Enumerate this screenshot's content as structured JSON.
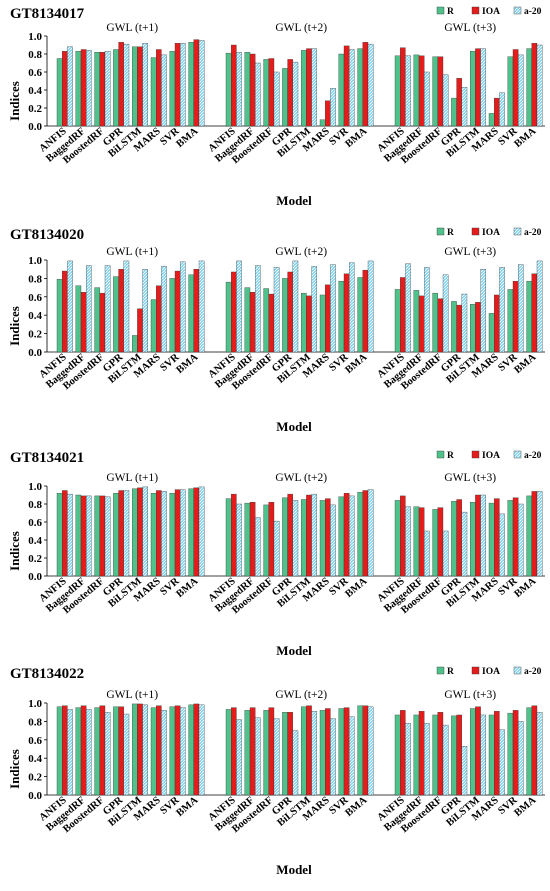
{
  "figure": {
    "models": [
      "ANFIS",
      "BaggedRF",
      "BoostedRF",
      "GPR",
      "BiLSTM",
      "MARS",
      "SVR",
      "BMA"
    ],
    "xlabel": "Model",
    "ylabel": "Indices",
    "legend": [
      "R",
      "IOA",
      "a-20"
    ],
    "colors": {
      "R": "#4ec28a",
      "IOA": "#e41c1c",
      "a-20": "#7fd3ef"
    }
  },
  "chart_data": [
    {
      "type": "bar",
      "title": "GT8134017",
      "xlabel": "Model",
      "ylabel": "Indices",
      "ylim": [
        0,
        1
      ],
      "yticks": [
        "0.0",
        "0.2",
        "0.4",
        "0.6",
        "0.8",
        "1.0"
      ],
      "legend_position": "top-right",
      "panels": [
        {
          "label": "GWL (t+1)",
          "categories": [
            "ANFIS",
            "BaggedRF",
            "BoostedRF",
            "GPR",
            "BiLSTM",
            "MARS",
            "SVR",
            "BMA"
          ],
          "series": [
            {
              "name": "R",
              "values": [
                0.75,
                0.83,
                0.82,
                0.85,
                0.88,
                0.76,
                0.83,
                0.93
              ]
            },
            {
              "name": "IOA",
              "values": [
                0.83,
                0.85,
                0.82,
                0.93,
                0.88,
                0.85,
                0.92,
                0.96
              ]
            },
            {
              "name": "a-20",
              "values": [
                0.88,
                0.84,
                0.83,
                0.91,
                0.92,
                0.79,
                0.92,
                0.95
              ]
            }
          ]
        },
        {
          "label": "GWL (t+2)",
          "categories": [
            "ANFIS",
            "BaggedRF",
            "BoostedRF",
            "GPR",
            "BiLSTM",
            "MARS",
            "SVR",
            "BMA"
          ],
          "series": [
            {
              "name": "R",
              "values": [
                0.81,
                0.82,
                0.74,
                0.64,
                0.84,
                0.07,
                0.8,
                0.86
              ]
            },
            {
              "name": "IOA",
              "values": [
                0.9,
                0.8,
                0.75,
                0.74,
                0.86,
                0.28,
                0.89,
                0.93
              ]
            },
            {
              "name": "a-20",
              "values": [
                0.82,
                0.7,
                0.6,
                0.71,
                0.86,
                0.42,
                0.85,
                0.91
              ]
            }
          ]
        },
        {
          "label": "GWL (t+3)",
          "categories": [
            "ANFIS",
            "BaggedRF",
            "BoostedRF",
            "GPR",
            "BiLSTM",
            "MARS",
            "SVR",
            "BMA"
          ],
          "series": [
            {
              "name": "R",
              "values": [
                0.78,
                0.79,
                0.77,
                0.31,
                0.83,
                0.14,
                0.77,
                0.86
              ]
            },
            {
              "name": "IOA",
              "values": [
                0.87,
                0.78,
                0.77,
                0.53,
                0.86,
                0.31,
                0.85,
                0.92
              ]
            },
            {
              "name": "a-20",
              "values": [
                0.78,
                0.6,
                0.57,
                0.43,
                0.86,
                0.37,
                0.79,
                0.9
              ]
            }
          ]
        }
      ]
    },
    {
      "type": "bar",
      "title": "GT8134020",
      "xlabel": "Model",
      "ylabel": "Indices",
      "ylim": [
        0,
        1
      ],
      "yticks": [
        "0.0",
        "0.2",
        "0.4",
        "0.6",
        "0.8",
        "1.0"
      ],
      "legend_position": "top-right",
      "panels": [
        {
          "label": "GWL (t+1)",
          "categories": [
            "ANFIS",
            "BaggedRF",
            "BoostedRF",
            "GPR",
            "BiLSTM",
            "MARS",
            "SVR",
            "BMA"
          ],
          "series": [
            {
              "name": "R",
              "values": [
                0.79,
                0.72,
                0.7,
                0.82,
                0.18,
                0.57,
                0.8,
                0.84
              ]
            },
            {
              "name": "IOA",
              "values": [
                0.88,
                0.65,
                0.64,
                0.9,
                0.47,
                0.72,
                0.88,
                0.9
              ]
            },
            {
              "name": "a-20",
              "values": [
                0.99,
                0.94,
                0.94,
                0.99,
                0.9,
                0.93,
                0.98,
                0.99
              ]
            }
          ]
        },
        {
          "label": "GWL (t+2)",
          "categories": [
            "ANFIS",
            "BaggedRF",
            "BoostedRF",
            "GPR",
            "BiLSTM",
            "MARS",
            "SVR",
            "BMA"
          ],
          "series": [
            {
              "name": "R",
              "values": [
                0.76,
                0.7,
                0.69,
                0.8,
                0.64,
                0.62,
                0.77,
                0.81
              ]
            },
            {
              "name": "IOA",
              "values": [
                0.87,
                0.65,
                0.63,
                0.87,
                0.61,
                0.73,
                0.85,
                0.89
              ]
            },
            {
              "name": "a-20",
              "values": [
                0.99,
                0.94,
                0.92,
                0.99,
                0.93,
                0.95,
                0.97,
                0.99
              ]
            }
          ]
        },
        {
          "label": "GWL (t+3)",
          "categories": [
            "ANFIS",
            "BaggedRF",
            "BoostedRF",
            "GPR",
            "BiLSTM",
            "MARS",
            "SVR",
            "BMA"
          ],
          "series": [
            {
              "name": "R",
              "values": [
                0.68,
                0.67,
                0.64,
                0.55,
                0.52,
                0.42,
                0.68,
                0.77
              ]
            },
            {
              "name": "IOA",
              "values": [
                0.81,
                0.61,
                0.58,
                0.51,
                0.54,
                0.62,
                0.77,
                0.85
              ]
            },
            {
              "name": "a-20",
              "values": [
                0.96,
                0.92,
                0.84,
                0.63,
                0.9,
                0.92,
                0.95,
                0.99
              ]
            }
          ]
        }
      ]
    },
    {
      "type": "bar",
      "title": "GT8134021",
      "xlabel": "Model",
      "ylabel": "Indices",
      "ylim": [
        0,
        1
      ],
      "yticks": [
        "0.0",
        "0.2",
        "0.4",
        "0.6",
        "0.8",
        "1.0"
      ],
      "legend_position": "top-right",
      "panels": [
        {
          "label": "GWL (t+1)",
          "categories": [
            "ANFIS",
            "BaggedRF",
            "BoostedRF",
            "GPR",
            "BiLSTM",
            "MARS",
            "SVR",
            "BMA"
          ],
          "series": [
            {
              "name": "R",
              "values": [
                0.92,
                0.9,
                0.89,
                0.92,
                0.97,
                0.92,
                0.92,
                0.97
              ]
            },
            {
              "name": "IOA",
              "values": [
                0.95,
                0.89,
                0.89,
                0.95,
                0.98,
                0.95,
                0.96,
                0.98
              ]
            },
            {
              "name": "a-20",
              "values": [
                0.91,
                0.89,
                0.88,
                0.95,
                0.99,
                0.94,
                0.96,
                0.99
              ]
            }
          ]
        },
        {
          "label": "GWL (t+2)",
          "categories": [
            "ANFIS",
            "BaggedRF",
            "BoostedRF",
            "GPR",
            "BiLSTM",
            "MARS",
            "SVR",
            "BMA"
          ],
          "series": [
            {
              "name": "R",
              "values": [
                0.86,
                0.81,
                0.79,
                0.87,
                0.85,
                0.84,
                0.88,
                0.93
              ]
            },
            {
              "name": "IOA",
              "values": [
                0.91,
                0.82,
                0.82,
                0.91,
                0.9,
                0.86,
                0.92,
                0.95
              ]
            },
            {
              "name": "a-20",
              "values": [
                0.8,
                0.65,
                0.61,
                0.84,
                0.91,
                0.79,
                0.89,
                0.96
              ]
            }
          ]
        },
        {
          "label": "GWL (t+3)",
          "categories": [
            "ANFIS",
            "BaggedRF",
            "BoostedRF",
            "GPR",
            "BiLSTM",
            "MARS",
            "SVR",
            "BMA"
          ],
          "series": [
            {
              "name": "R",
              "values": [
                0.84,
                0.77,
                0.74,
                0.83,
                0.82,
                0.81,
                0.84,
                0.89
              ]
            },
            {
              "name": "IOA",
              "values": [
                0.89,
                0.76,
                0.76,
                0.85,
                0.9,
                0.86,
                0.87,
                0.94
              ]
            },
            {
              "name": "a-20",
              "values": [
                0.77,
                0.5,
                0.5,
                0.71,
                0.9,
                0.69,
                0.8,
                0.94
              ]
            }
          ]
        }
      ]
    },
    {
      "type": "bar",
      "title": "GT8134022",
      "xlabel": "Model",
      "ylabel": "Indices",
      "ylim": [
        0,
        1
      ],
      "yticks": [
        "0.0",
        "0.2",
        "0.4",
        "0.6",
        "0.8",
        "1.0"
      ],
      "legend_position": "top-right",
      "panels": [
        {
          "label": "GWL (t+1)",
          "categories": [
            "ANFIS",
            "BaggedRF",
            "BoostedRF",
            "GPR",
            "BiLSTM",
            "MARS",
            "SVR",
            "BMA"
          ],
          "series": [
            {
              "name": "R",
              "values": [
                0.96,
                0.95,
                0.95,
                0.96,
                0.99,
                0.95,
                0.96,
                0.98
              ]
            },
            {
              "name": "IOA",
              "values": [
                0.97,
                0.97,
                0.97,
                0.96,
                0.99,
                0.97,
                0.97,
                0.99
              ]
            },
            {
              "name": "a-20",
              "values": [
                0.93,
                0.93,
                0.9,
                0.88,
                0.98,
                0.92,
                0.95,
                0.98
              ]
            }
          ]
        },
        {
          "label": "GWL (t+2)",
          "categories": [
            "ANFIS",
            "BaggedRF",
            "BoostedRF",
            "GPR",
            "BiLSTM",
            "MARS",
            "SVR",
            "BMA"
          ],
          "series": [
            {
              "name": "R",
              "values": [
                0.93,
                0.92,
                0.92,
                0.9,
                0.96,
                0.92,
                0.94,
                0.97
              ]
            },
            {
              "name": "IOA",
              "values": [
                0.95,
                0.95,
                0.95,
                0.9,
                0.97,
                0.94,
                0.95,
                0.97
              ]
            },
            {
              "name": "a-20",
              "values": [
                0.82,
                0.84,
                0.83,
                0.7,
                0.91,
                0.83,
                0.85,
                0.96
              ]
            }
          ]
        },
        {
          "label": "GWL (t+3)",
          "categories": [
            "ANFIS",
            "BaggedRF",
            "BoostedRF",
            "GPR",
            "BiLSTM",
            "MARS",
            "SVR",
            "BMA"
          ],
          "series": [
            {
              "name": "R",
              "values": [
                0.87,
                0.87,
                0.87,
                0.86,
                0.94,
                0.87,
                0.89,
                0.95
              ]
            },
            {
              "name": "IOA",
              "values": [
                0.92,
                0.91,
                0.9,
                0.87,
                0.96,
                0.91,
                0.92,
                0.97
              ]
            },
            {
              "name": "a-20",
              "values": [
                0.78,
                0.78,
                0.76,
                0.53,
                0.87,
                0.71,
                0.8,
                0.9
              ]
            }
          ]
        }
      ]
    }
  ]
}
